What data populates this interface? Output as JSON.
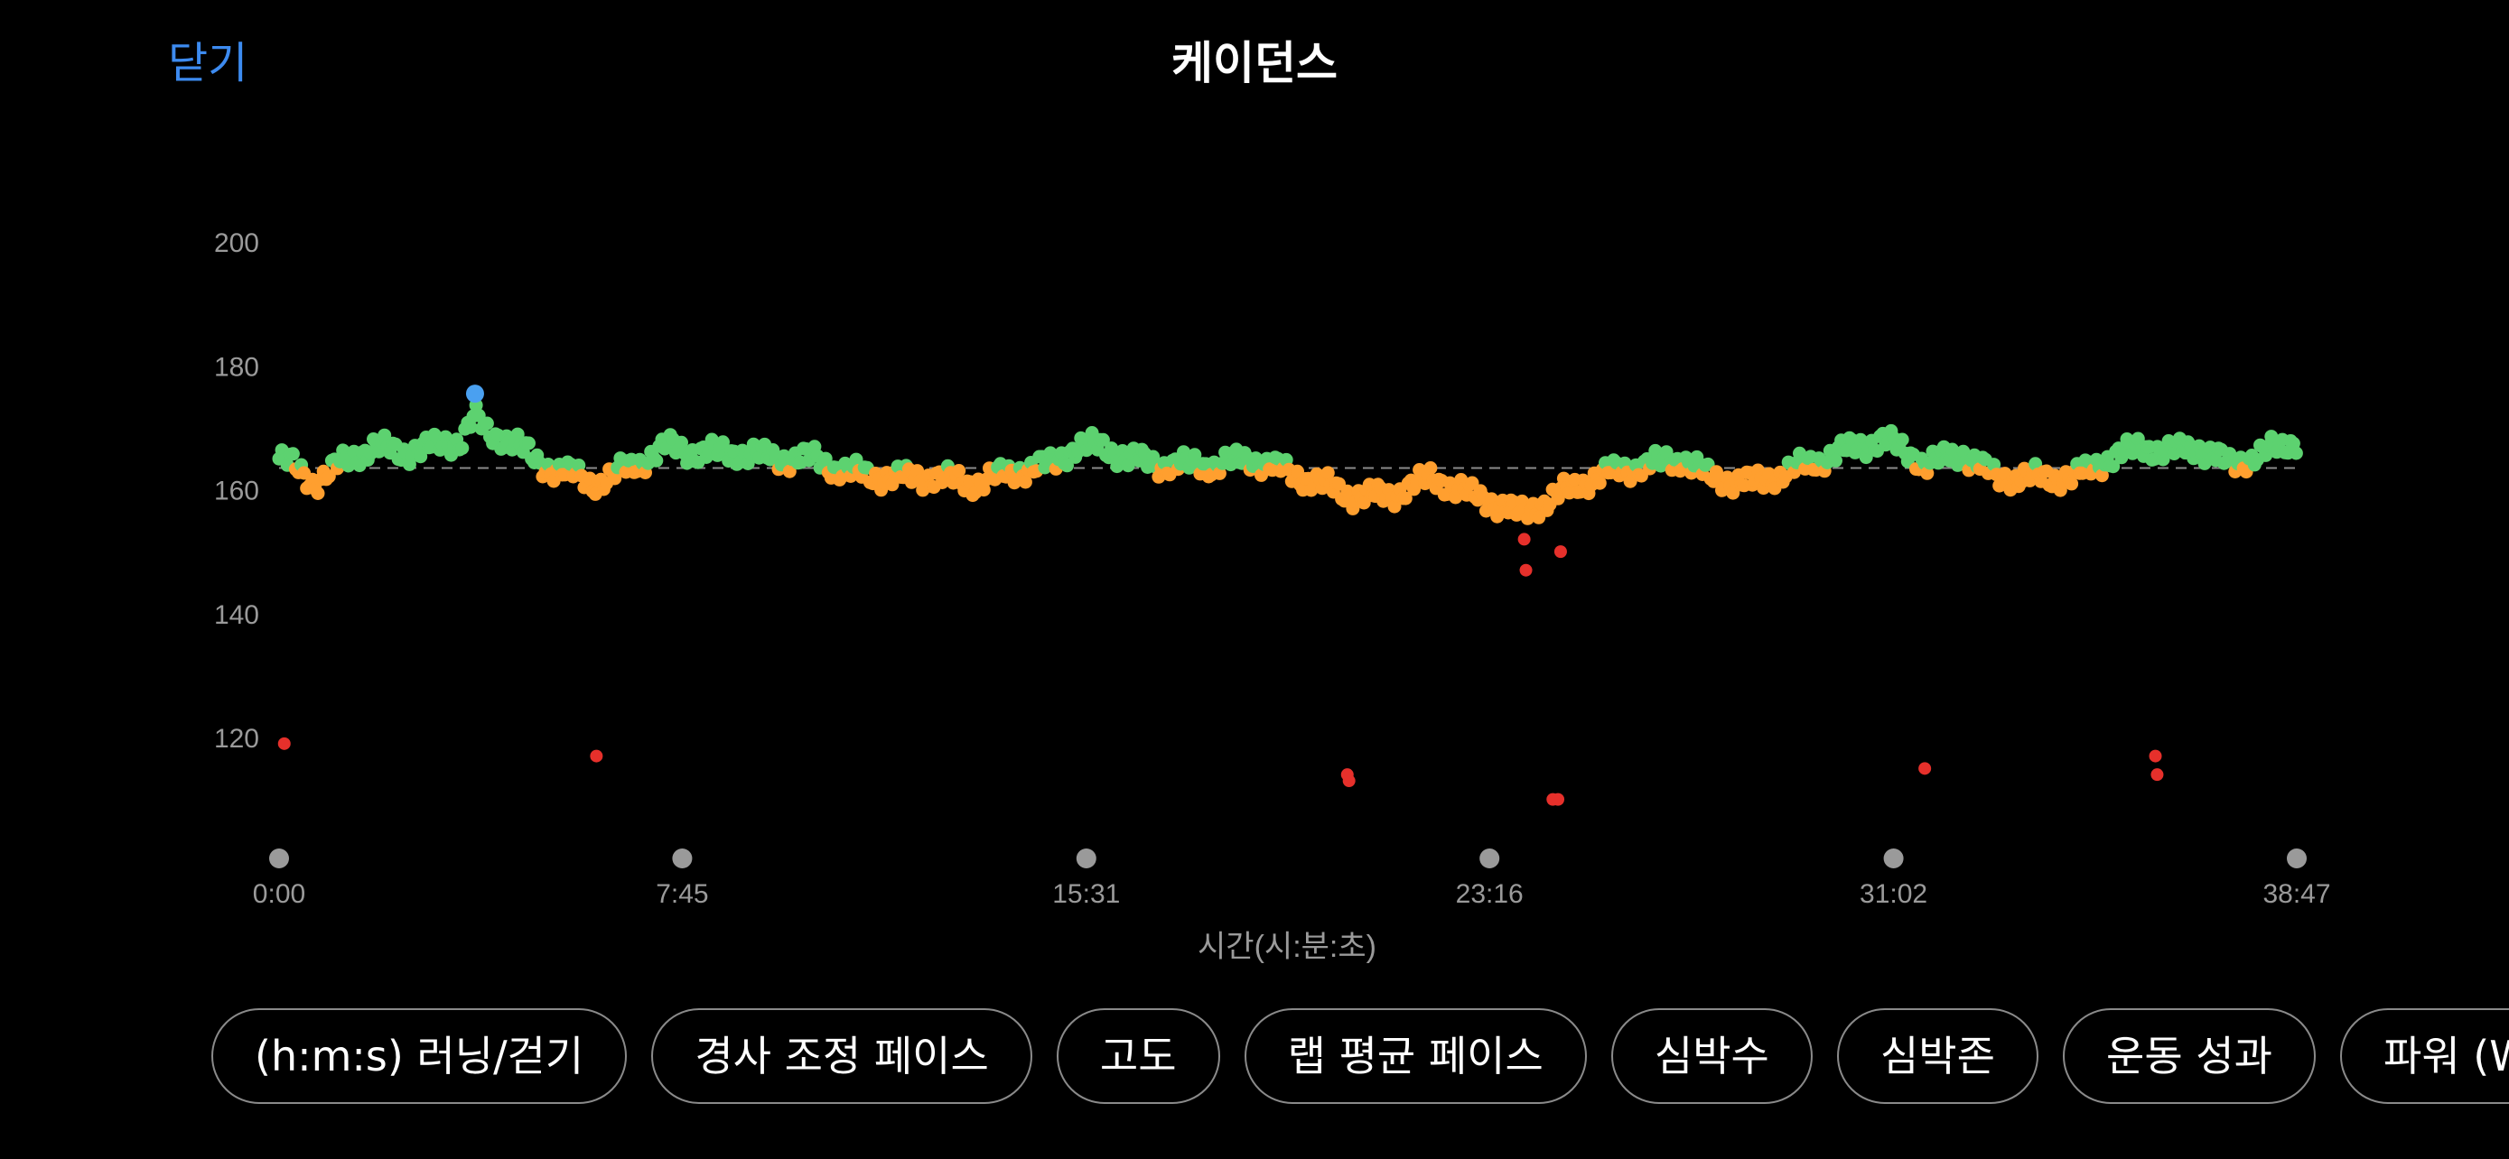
{
  "header": {
    "close_label": "닫기",
    "title": "케이던스"
  },
  "colors": {
    "accent": "#3d8bf0",
    "above_avg": "#5dd270",
    "below_avg": "#ff9f2f",
    "low": "#e6302b",
    "max": "#4aa0f0",
    "axis_text": "#9a9a9a"
  },
  "chart_data": {
    "type": "scatter",
    "xlabel": "시간(시:분:초)",
    "ylabel": "",
    "ylim": [
      100,
      207
    ],
    "yticks": [
      120,
      140,
      160,
      180,
      200
    ],
    "xlim": [
      0,
      2327
    ],
    "xticks": [
      {
        "value": 0,
        "label": "0:00"
      },
      {
        "value": 465,
        "label": "7:45"
      },
      {
        "value": 931,
        "label": "15:31"
      },
      {
        "value": 1396,
        "label": "23:16"
      },
      {
        "value": 1862,
        "label": "31:02"
      },
      {
        "value": 2327,
        "label": "38:47"
      }
    ],
    "average": 163.5,
    "grid": false,
    "outliers": [
      {
        "x": 6,
        "y": 119
      },
      {
        "x": 366,
        "y": 117
      },
      {
        "x": 1232,
        "y": 114
      },
      {
        "x": 1234,
        "y": 113
      },
      {
        "x": 1436,
        "y": 152
      },
      {
        "x": 1438,
        "y": 147
      },
      {
        "x": 1469,
        "y": 110
      },
      {
        "x": 1475,
        "y": 110
      },
      {
        "x": 1478,
        "y": 150
      },
      {
        "x": 1898,
        "y": 115
      },
      {
        "x": 2164,
        "y": 117
      },
      {
        "x": 2166,
        "y": 114
      }
    ],
    "max_point": {
      "x": 226,
      "y": 175.5
    }
  },
  "tabs": [
    {
      "label": "(h:m:s) 러닝/걷기"
    },
    {
      "label": "경사 조정 페이스"
    },
    {
      "label": "고도"
    },
    {
      "label": "랩 평균 페이스"
    },
    {
      "label": "심박수"
    },
    {
      "label": "심박존"
    },
    {
      "label": "운동 성과"
    },
    {
      "label": "파워 (W)"
    }
  ]
}
